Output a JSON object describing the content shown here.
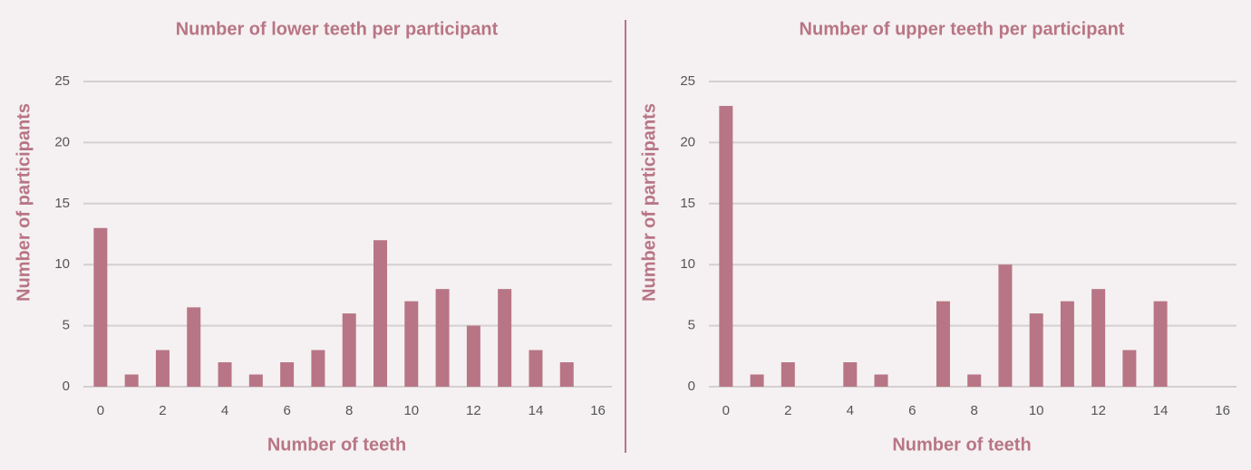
{
  "chart_data": [
    {
      "type": "bar",
      "title": "Number of lower teeth per participant",
      "x_label": "Number of teeth",
      "y_label": "Number of participants",
      "categories": [
        "0",
        null,
        "2",
        null,
        "4",
        null,
        "6",
        null,
        "8",
        null,
        "10",
        null,
        "12",
        null,
        "14",
        null,
        "16"
      ],
      "values": [
        13,
        1,
        3,
        6.5,
        2,
        1,
        2,
        3,
        6,
        12,
        7,
        8,
        5,
        8,
        3,
        2,
        0
      ],
      "color": "#b87585",
      "ylim": [
        0,
        25
      ],
      "yticks": [
        0,
        5,
        10,
        15,
        20,
        25
      ],
      "grid": true
    },
    {
      "type": "bar",
      "title": "Number of upper teeth per participant",
      "x_label": "Number of teeth",
      "y_label": "Number of participants",
      "categories": [
        "0",
        null,
        "2",
        null,
        "4",
        null,
        "6",
        null,
        "8",
        null,
        "10",
        null,
        "12",
        null,
        "14",
        null,
        "16"
      ],
      "values": [
        23,
        1,
        2,
        0,
        2,
        1,
        0,
        7,
        1,
        10,
        6,
        7,
        8,
        3,
        7,
        0,
        0
      ],
      "color": "#b87585",
      "ylim": [
        0,
        25
      ],
      "yticks": [
        0,
        5,
        10,
        15,
        20,
        25
      ],
      "grid": true
    }
  ]
}
